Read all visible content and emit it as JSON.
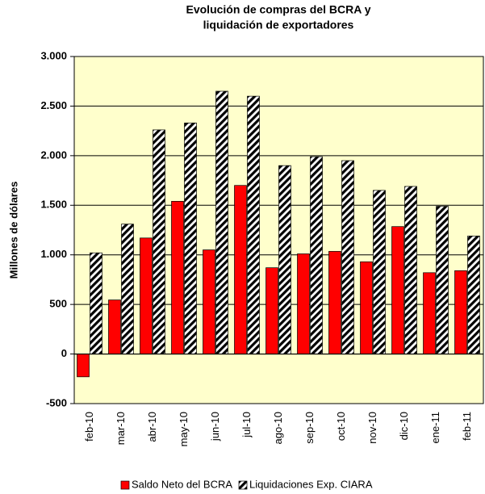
{
  "chart_data": {
    "type": "bar",
    "title": [
      "Evolución de compras del BCRA y",
      "liquidación de exportadores"
    ],
    "y_label": "Millones de dólares",
    "categories": [
      "feb-10",
      "mar-10",
      "abr-10",
      "may-10",
      "jun-10",
      "jul-10",
      "ago-10",
      "sep-10",
      "oct-10",
      "nov-10",
      "dic-10",
      "ene-11",
      "feb-11"
    ],
    "series": [
      {
        "name": "Saldo Neto del BCRA",
        "color": "#ff0000",
        "values": [
          -230,
          545,
          1170,
          1540,
          1050,
          1700,
          870,
          1010,
          1035,
          930,
          1285,
          820,
          840
        ]
      },
      {
        "name": "Liquidaciones Exp. CIARA",
        "color": "#000000",
        "pattern": "diagonal-hatch",
        "values": [
          1020,
          1310,
          2260,
          2330,
          2650,
          2600,
          1900,
          1990,
          1950,
          1650,
          1690,
          1490,
          1190
        ]
      }
    ],
    "ylim": [
      -500,
      3000
    ],
    "yticks": [
      -500,
      0,
      500,
      {
        "value": 1000,
        "label": "1.000"
      },
      {
        "value": 1500,
        "label": "1.500"
      },
      {
        "value": 2000,
        "label": "2.000"
      },
      {
        "value": 2500,
        "label": "2.500"
      },
      {
        "value": 3000,
        "label": "3.000"
      }
    ],
    "grid": true,
    "background": "#ffffcc",
    "legend": "bottom"
  }
}
